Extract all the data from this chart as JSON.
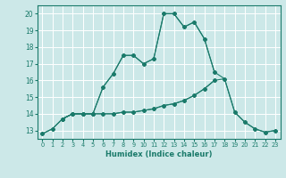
{
  "xlabel": "Humidex (Indice chaleur)",
  "bg_color": "#cce8e8",
  "line_color": "#1a7a6a",
  "grid_color": "#ffffff",
  "xlim": [
    -0.5,
    23.5
  ],
  "ylim": [
    12.5,
    20.5
  ],
  "yticks": [
    13,
    14,
    15,
    16,
    17,
    18,
    19,
    20
  ],
  "xticks": [
    0,
    1,
    2,
    3,
    4,
    5,
    6,
    7,
    8,
    9,
    10,
    11,
    12,
    13,
    14,
    15,
    16,
    17,
    18,
    19,
    20,
    21,
    22,
    23
  ],
  "lines": [
    {
      "x": [
        0,
        1,
        2,
        3,
        4,
        5,
        6,
        7,
        8,
        9,
        10,
        11,
        12,
        13,
        14,
        15,
        16,
        17
      ],
      "y": [
        12.8,
        13.1,
        13.7,
        14.0,
        14.0,
        14.0,
        14.0,
        14.0,
        14.1,
        14.1,
        14.2,
        14.3,
        14.5,
        14.6,
        14.8,
        15.1,
        15.5,
        16.0
      ]
    },
    {
      "x": [
        0,
        1,
        2,
        3,
        4,
        5,
        6,
        7,
        8,
        9,
        10,
        11,
        12,
        13,
        14,
        15,
        16,
        17,
        18,
        19,
        20,
        21,
        22,
        23
      ],
      "y": [
        12.8,
        13.1,
        13.7,
        14.0,
        14.0,
        14.0,
        14.0,
        14.0,
        14.1,
        14.1,
        14.2,
        14.3,
        14.5,
        14.6,
        14.8,
        15.1,
        15.5,
        16.0,
        16.1,
        14.1,
        13.5,
        13.1,
        12.9,
        13.0
      ]
    },
    {
      "x": [
        2,
        3,
        4,
        5,
        6,
        7,
        8,
        9,
        10,
        11,
        12,
        13,
        14,
        15,
        16,
        17
      ],
      "y": [
        13.7,
        14.0,
        14.0,
        14.0,
        15.6,
        16.4,
        17.5,
        17.5,
        17.0,
        17.3,
        20.0,
        20.0,
        19.2,
        19.5,
        18.5,
        16.5
      ]
    },
    {
      "x": [
        2,
        3,
        4,
        5,
        6,
        7,
        8,
        9,
        10,
        11,
        12,
        13,
        14,
        15,
        16,
        17,
        18,
        19,
        20,
        21,
        22,
        23
      ],
      "y": [
        13.7,
        14.0,
        14.0,
        14.0,
        15.6,
        16.4,
        17.5,
        17.5,
        17.0,
        17.3,
        20.0,
        20.0,
        19.2,
        19.5,
        18.5,
        16.5,
        16.1,
        14.1,
        13.5,
        13.1,
        12.9,
        13.0
      ]
    }
  ]
}
